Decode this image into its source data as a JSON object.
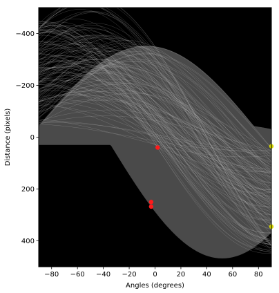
{
  "chart_data": {
    "type": "heatmap",
    "description_kind": "hough-transform-accumulator",
    "xlabel": "Angles (degrees)",
    "ylabel": "Distance (pixels)",
    "xlim": [
      -90,
      90
    ],
    "ylim": [
      500,
      -500
    ],
    "x_ticks": [
      -80,
      -60,
      -40,
      -20,
      0,
      20,
      40,
      60,
      80
    ],
    "x_tick_labels": [
      "−80",
      "−60",
      "−40",
      "−20",
      "0",
      "20",
      "40",
      "60",
      "80"
    ],
    "y_ticks": [
      -400,
      -200,
      0,
      200,
      400
    ],
    "y_tick_labels": [
      "−400",
      "−200",
      "0",
      "200",
      "400"
    ],
    "background_color": "#000000",
    "sinusoid_color": "#bdbdbd",
    "fill_color": "#4a4a4a",
    "peaks": [
      {
        "angle": 2,
        "distance": 40,
        "color": "#ff1a1a"
      },
      {
        "angle": -3,
        "distance": 250,
        "color": "#ff1a1a"
      },
      {
        "angle": -3,
        "distance": 268,
        "color": "#ff1a1a"
      },
      {
        "angle": 90,
        "distance": 35,
        "color": "#d4d400"
      },
      {
        "angle": 90,
        "distance": 345,
        "color": "#d4d400"
      }
    ],
    "envelope": {
      "upper_left_angle": -90,
      "upper_left_distance": -350,
      "lower_right_min_angle": 55,
      "lower_right_min_distance": 450
    }
  }
}
